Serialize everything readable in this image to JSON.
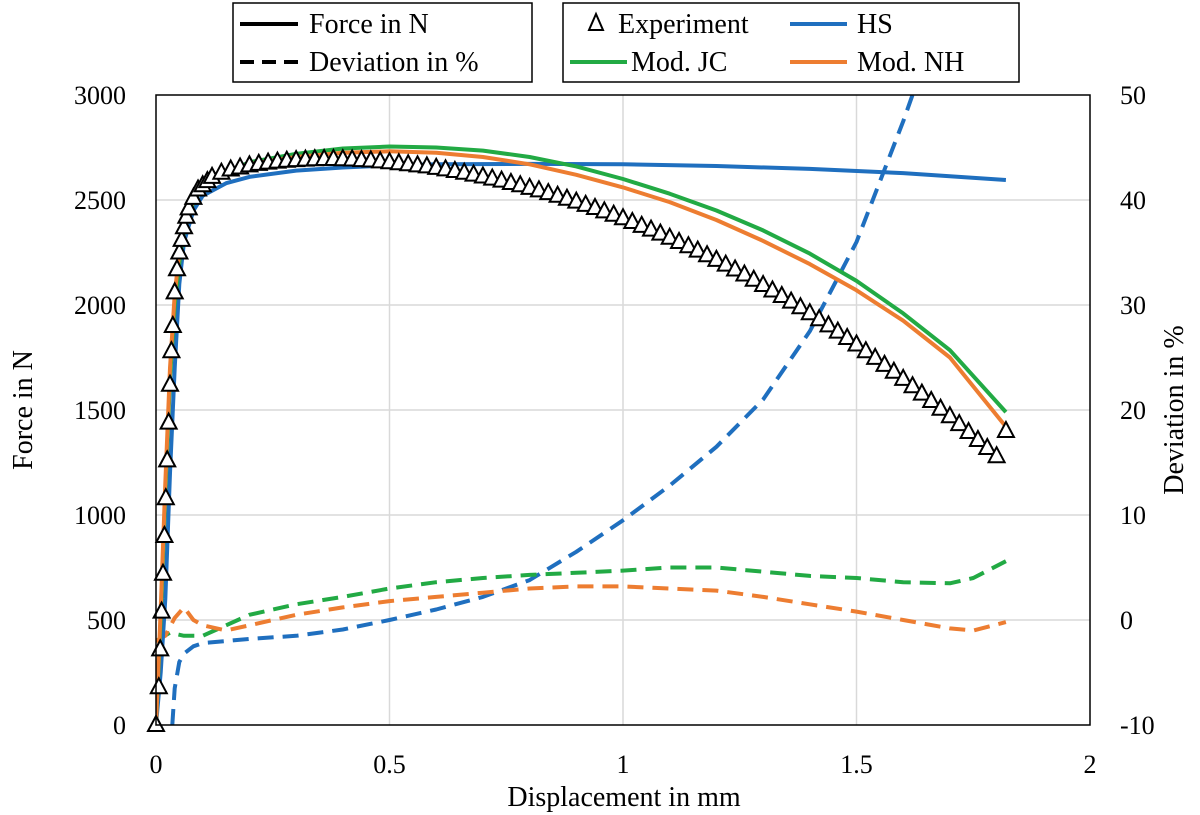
{
  "chart_data": {
    "type": "line",
    "xlabel": "Displacement in mm",
    "ylabel": "Force in N",
    "y2label": "Deviation in %",
    "xlim": [
      0,
      2
    ],
    "ylim": [
      0,
      3000
    ],
    "y2lim": [
      -10,
      50
    ],
    "xticks": [
      0,
      0.5,
      1,
      1.5,
      2
    ],
    "xtick_labels": [
      "0",
      "0.5",
      "1",
      "1.5",
      "2"
    ],
    "yticks": [
      0,
      500,
      1000,
      1500,
      2000,
      2500,
      3000
    ],
    "ytick_labels": [
      "0",
      "500",
      "1000",
      "1500",
      "2000",
      "2500",
      "3000"
    ],
    "y2ticks": [
      -10,
      0,
      10,
      20,
      30,
      40,
      50
    ],
    "y2tick_labels": [
      "-10",
      "0",
      "10",
      "20",
      "30",
      "40",
      "50"
    ],
    "grid": true,
    "colors": {
      "experiment": "#000000",
      "hs": "#1f6fbf",
      "mod_jc": "#22aa44",
      "mod_nh": "#ed7d31"
    },
    "legend_linestyle": {
      "location": "top-left",
      "items": [
        {
          "label": "Force in N",
          "style": "solid"
        },
        {
          "label": "Deviation in %",
          "style": "dashed"
        }
      ]
    },
    "legend_series": {
      "location": "top-right",
      "items": [
        {
          "label": "Experiment",
          "key": "experiment",
          "marker": "triangle"
        },
        {
          "label": "HS",
          "key": "hs",
          "marker": "line"
        },
        {
          "label": "Mod. JC",
          "key": "mod_jc",
          "marker": "line"
        },
        {
          "label": "Mod. NH",
          "key": "mod_nh",
          "marker": "line"
        }
      ]
    },
    "series": [
      {
        "name": "Experiment",
        "key": "experiment",
        "kind": "force",
        "style": "triangle",
        "x": [
          0,
          0.006,
          0.009,
          0.012,
          0.015,
          0.018,
          0.021,
          0.024,
          0.027,
          0.03,
          0.033,
          0.036,
          0.04,
          0.045,
          0.05,
          0.055,
          0.06,
          0.065,
          0.07,
          0.08,
          0.09,
          0.1,
          0.11,
          0.12,
          0.14,
          0.16,
          0.18,
          0.2,
          0.22,
          0.24,
          0.26,
          0.28,
          0.3,
          0.32,
          0.34,
          0.36,
          0.38,
          0.4,
          0.42,
          0.44,
          0.46,
          0.48,
          0.5,
          0.52,
          0.54,
          0.56,
          0.58,
          0.6,
          0.62,
          0.64,
          0.66,
          0.68,
          0.7,
          0.72,
          0.74,
          0.76,
          0.78,
          0.8,
          0.82,
          0.84,
          0.86,
          0.88,
          0.9,
          0.92,
          0.94,
          0.96,
          0.98,
          1.0,
          1.02,
          1.04,
          1.06,
          1.08,
          1.1,
          1.12,
          1.14,
          1.16,
          1.18,
          1.2,
          1.22,
          1.24,
          1.26,
          1.28,
          1.3,
          1.32,
          1.34,
          1.36,
          1.38,
          1.4,
          1.42,
          1.44,
          1.46,
          1.48,
          1.5,
          1.52,
          1.54,
          1.56,
          1.58,
          1.6,
          1.62,
          1.64,
          1.66,
          1.68,
          1.7,
          1.72,
          1.74,
          1.76,
          1.78,
          1.8,
          1.82
        ],
        "y": [
          0,
          180,
          360,
          540,
          720,
          900,
          1080,
          1260,
          1440,
          1620,
          1780,
          1900,
          2060,
          2170,
          2250,
          2310,
          2370,
          2420,
          2460,
          2510,
          2550,
          2570,
          2590,
          2610,
          2630,
          2645,
          2655,
          2665,
          2672,
          2678,
          2683,
          2687,
          2690,
          2692,
          2694,
          2695,
          2695,
          2694,
          2693,
          2690,
          2688,
          2684,
          2680,
          2675,
          2670,
          2665,
          2660,
          2653,
          2646,
          2638,
          2630,
          2621,
          2612,
          2602,
          2592,
          2581,
          2570,
          2558,
          2546,
          2533,
          2520,
          2506,
          2492,
          2477,
          2462,
          2446,
          2430,
          2413,
          2395,
          2377,
          2359,
          2340,
          2320,
          2300,
          2280,
          2259,
          2237,
          2215,
          2192,
          2169,
          2145,
          2120,
          2095,
          2069,
          2043,
          2016,
          1989,
          1961,
          1932,
          1903,
          1873,
          1843,
          1812,
          1780,
          1748,
          1715,
          1682,
          1648,
          1613,
          1578,
          1543,
          1506,
          1470,
          1433,
          1395,
          1357,
          1319,
          1280,
          1400
        ]
      },
      {
        "name": "HS",
        "key": "hs",
        "kind": "force",
        "style": "solid",
        "x": [
          0,
          0.01,
          0.02,
          0.03,
          0.04,
          0.05,
          0.06,
          0.08,
          0.1,
          0.15,
          0.2,
          0.3,
          0.4,
          0.5,
          0.6,
          0.8,
          1.0,
          1.2,
          1.4,
          1.6,
          1.82
        ],
        "y": [
          0,
          250,
          600,
          1200,
          1700,
          2100,
          2300,
          2450,
          2520,
          2580,
          2610,
          2640,
          2655,
          2665,
          2670,
          2672,
          2670,
          2662,
          2648,
          2628,
          2595
        ]
      },
      {
        "name": "Mod. JC",
        "key": "mod_jc",
        "kind": "force",
        "style": "solid",
        "x": [
          0,
          0.01,
          0.02,
          0.03,
          0.04,
          0.05,
          0.06,
          0.08,
          0.1,
          0.15,
          0.2,
          0.3,
          0.4,
          0.5,
          0.6,
          0.7,
          0.8,
          0.9,
          1.0,
          1.1,
          1.2,
          1.3,
          1.4,
          1.5,
          1.6,
          1.7,
          1.82
        ],
        "y": [
          0,
          500,
          1100,
          1650,
          2000,
          2200,
          2350,
          2490,
          2560,
          2630,
          2680,
          2720,
          2745,
          2755,
          2750,
          2735,
          2705,
          2660,
          2600,
          2530,
          2450,
          2355,
          2245,
          2115,
          1960,
          1785,
          1490
        ]
      },
      {
        "name": "Mod. NH",
        "key": "mod_nh",
        "kind": "force",
        "style": "solid",
        "x": [
          0,
          0.01,
          0.02,
          0.03,
          0.04,
          0.05,
          0.06,
          0.08,
          0.1,
          0.15,
          0.2,
          0.3,
          0.4,
          0.5,
          0.6,
          0.7,
          0.8,
          0.9,
          1.0,
          1.1,
          1.2,
          1.3,
          1.4,
          1.5,
          1.6,
          1.7,
          1.82
        ],
        "y": [
          0,
          550,
          1150,
          1700,
          2050,
          2250,
          2380,
          2500,
          2570,
          2630,
          2670,
          2705,
          2725,
          2732,
          2725,
          2705,
          2670,
          2620,
          2560,
          2490,
          2405,
          2305,
          2195,
          2070,
          1925,
          1750,
          1420
        ]
      },
      {
        "name": "HS deviation",
        "key": "hs",
        "kind": "deviation",
        "style": "dashed",
        "x": [
          0.035,
          0.04,
          0.05,
          0.06,
          0.08,
          0.1,
          0.15,
          0.2,
          0.3,
          0.4,
          0.5,
          0.6,
          0.7,
          0.8,
          0.9,
          1.0,
          1.1,
          1.2,
          1.3,
          1.4,
          1.5,
          1.6,
          1.62
        ],
        "y": [
          -10,
          -6.5,
          -4,
          -3.2,
          -2.5,
          -2.2,
          -2.0,
          -1.8,
          -1.5,
          -0.9,
          0.0,
          1.0,
          2.2,
          3.8,
          6.5,
          9.5,
          12.8,
          16.5,
          21.0,
          27.5,
          36.0,
          47.5,
          50
        ]
      },
      {
        "name": "Mod. JC deviation",
        "key": "mod_jc",
        "kind": "deviation",
        "style": "dashed",
        "x": [
          0,
          0.03,
          0.06,
          0.1,
          0.15,
          0.2,
          0.3,
          0.4,
          0.5,
          0.6,
          0.7,
          0.8,
          0.9,
          1.0,
          1.1,
          1.2,
          1.3,
          1.4,
          1.5,
          1.6,
          1.7,
          1.75,
          1.82
        ],
        "y": [
          -2,
          -1.2,
          -1.5,
          -1.5,
          -0.5,
          0.5,
          1.5,
          2.2,
          3.0,
          3.6,
          4.0,
          4.3,
          4.5,
          4.7,
          5.0,
          5.0,
          4.6,
          4.2,
          4.0,
          3.6,
          3.5,
          4.0,
          5.6
        ]
      },
      {
        "name": "Mod. NH deviation",
        "key": "mod_nh",
        "kind": "deviation",
        "style": "dashed",
        "x": [
          0,
          0.02,
          0.04,
          0.06,
          0.08,
          0.1,
          0.15,
          0.2,
          0.3,
          0.4,
          0.5,
          0.6,
          0.7,
          0.8,
          0.9,
          1.0,
          1.1,
          1.2,
          1.3,
          1.4,
          1.5,
          1.6,
          1.7,
          1.75,
          1.82
        ],
        "y": [
          -2,
          -1.5,
          0.2,
          1.2,
          0.0,
          -0.5,
          -1.0,
          -0.5,
          0.5,
          1.2,
          1.8,
          2.2,
          2.6,
          3.0,
          3.2,
          3.2,
          3.0,
          2.8,
          2.2,
          1.5,
          0.8,
          0.0,
          -0.8,
          -1.0,
          -0.2
        ]
      }
    ]
  }
}
